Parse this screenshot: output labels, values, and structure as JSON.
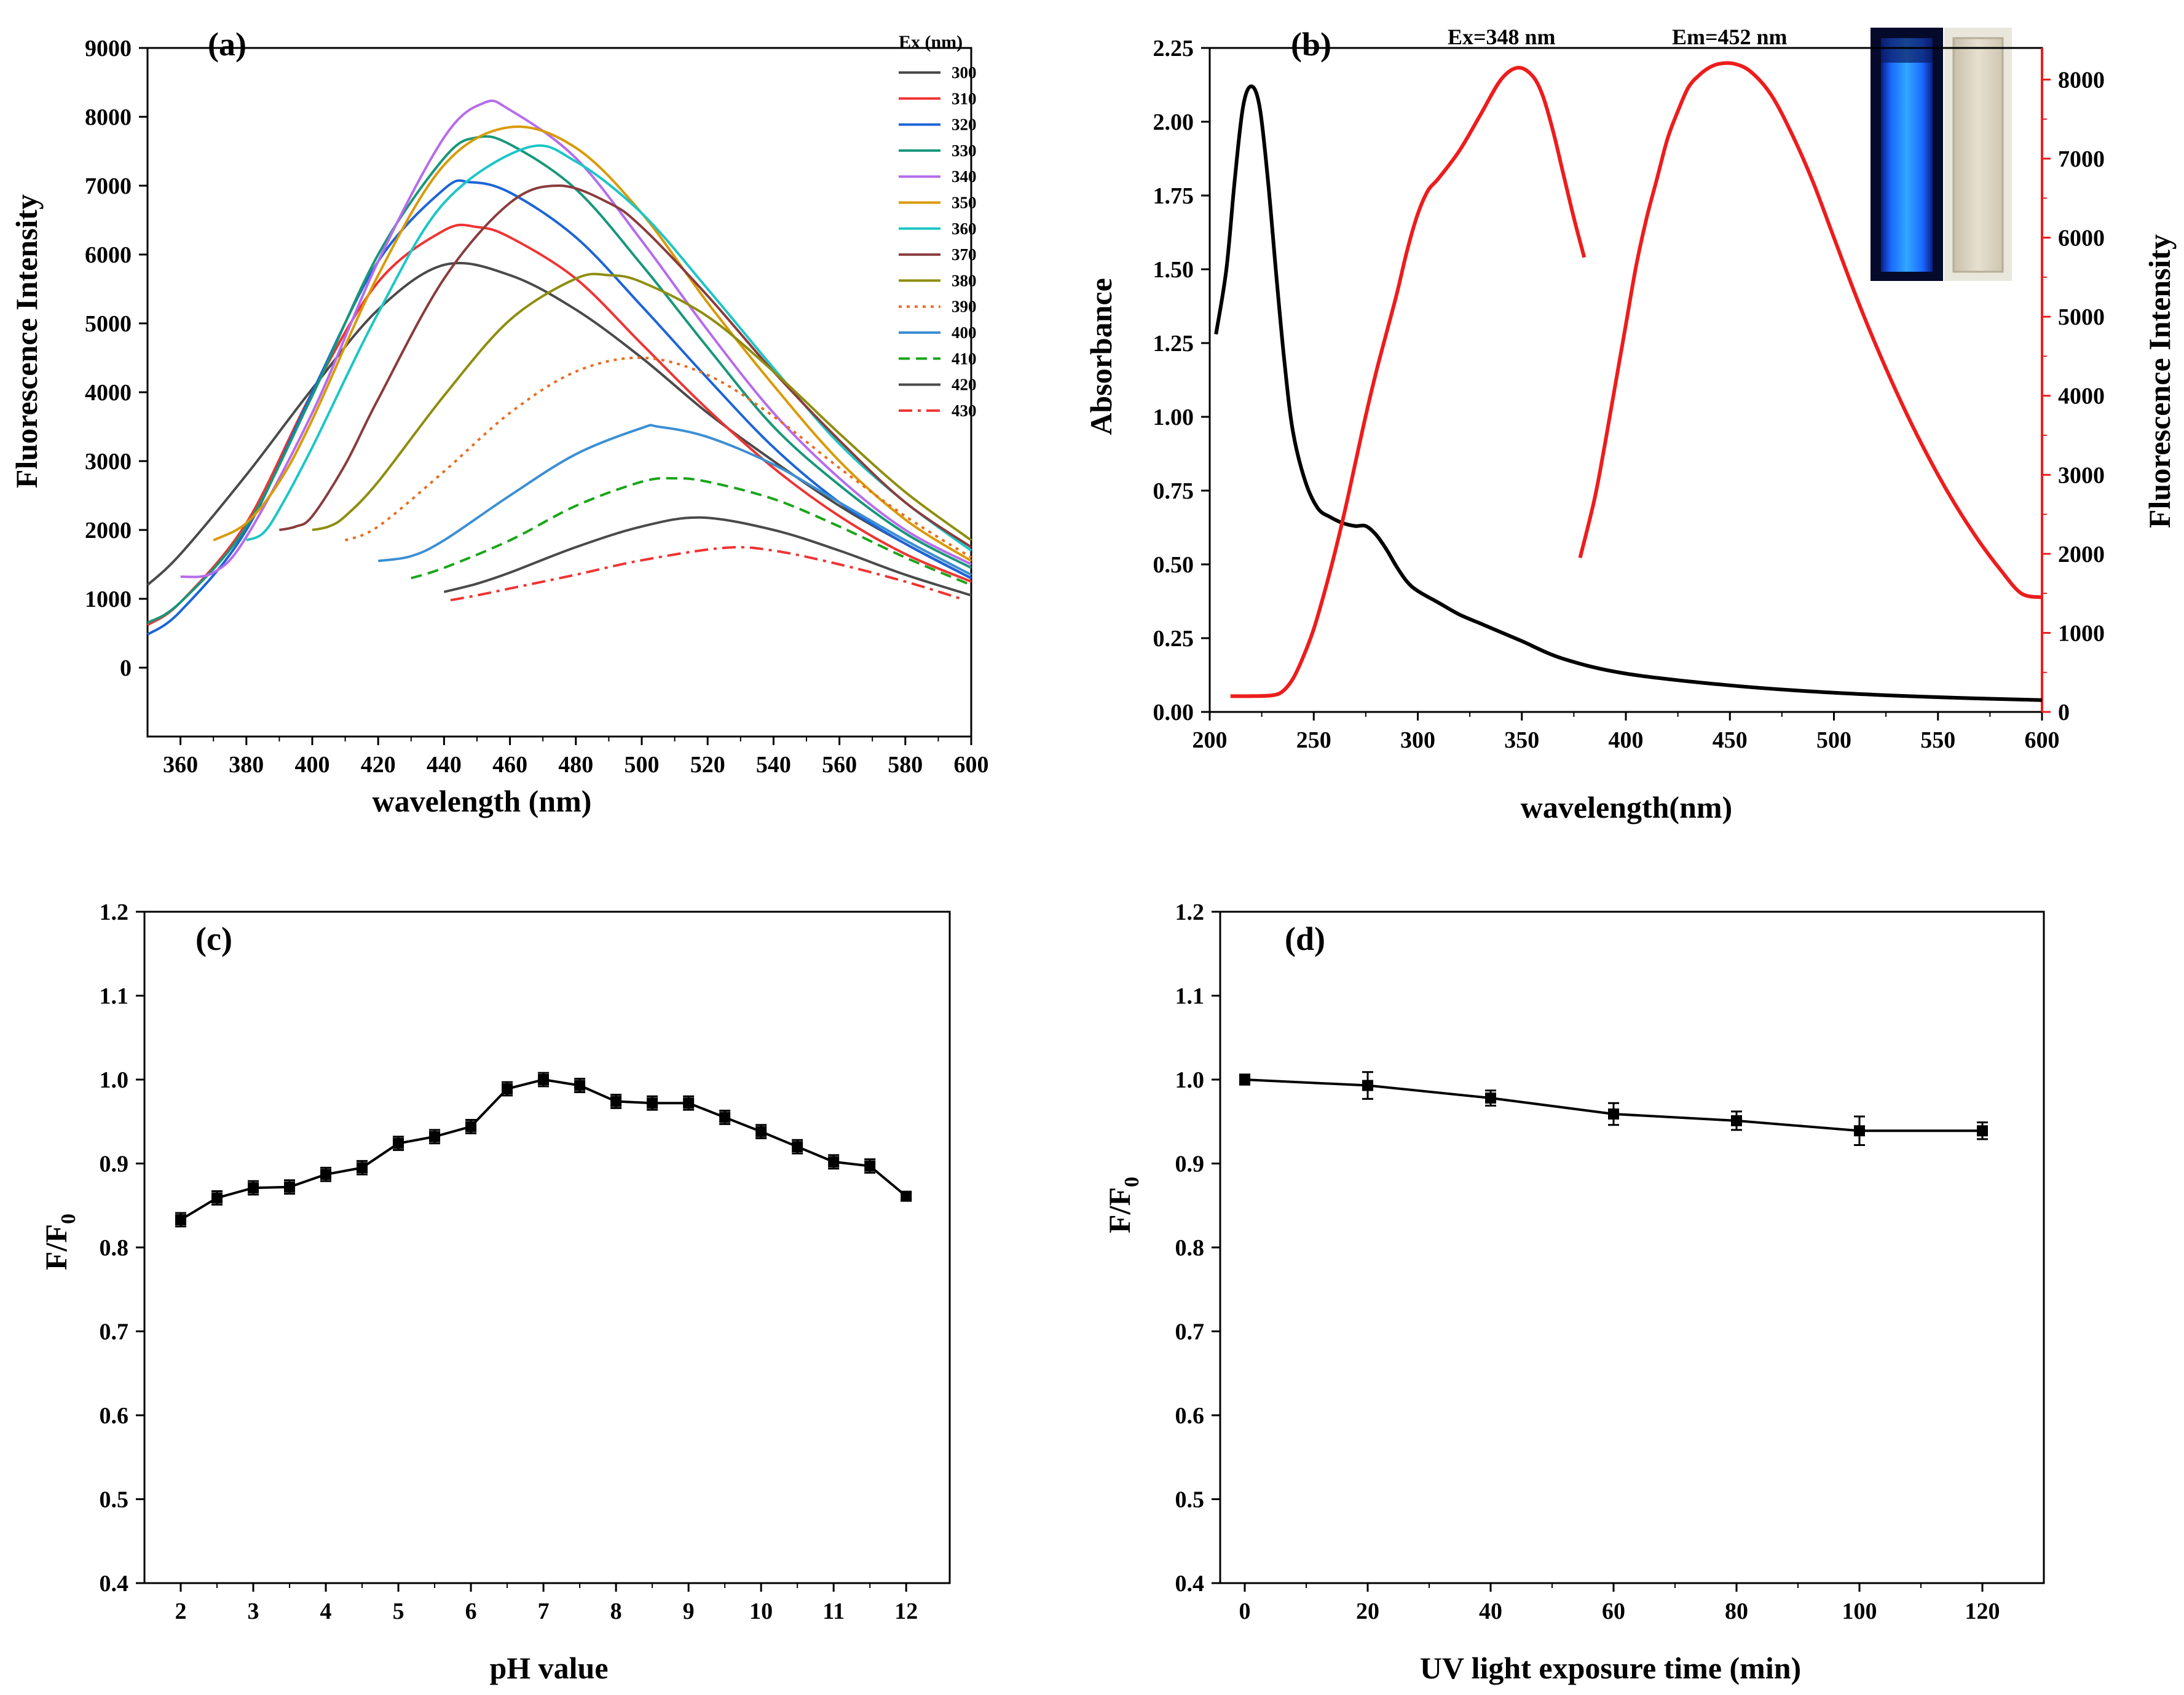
{
  "figure": "Four-panel fluorescence characterization figure",
  "chart_data": [
    {
      "id": "a",
      "type": "line",
      "panel_label": "(a)",
      "xlabel": "wavelength (nm)",
      "ylabel": "Fluorescence Intensity",
      "xlim": [
        350,
        600
      ],
      "ylim": [
        -1000,
        9000
      ],
      "xticks": [
        360,
        380,
        400,
        420,
        440,
        460,
        480,
        500,
        520,
        540,
        560,
        580,
        600
      ],
      "yticks": [
        0,
        1000,
        2000,
        3000,
        4000,
        5000,
        6000,
        7000,
        8000,
        9000
      ],
      "legend_title": "Ex (nm)",
      "legend_position": "top-right",
      "series": [
        {
          "name": "300",
          "color": "#4a4a4a",
          "dash": "solid",
          "x": [
            350,
            360,
            380,
            400,
            420,
            440,
            460,
            480,
            500,
            520,
            540,
            560,
            580,
            600
          ],
          "y": [
            1200,
            1650,
            2800,
            4050,
            5200,
            5850,
            5700,
            5200,
            4500,
            3700,
            3000,
            2350,
            1800,
            1300
          ]
        },
        {
          "name": "310",
          "color": "#ef3333",
          "dash": "solid",
          "x": [
            350,
            360,
            380,
            400,
            420,
            440,
            450,
            460,
            480,
            500,
            520,
            540,
            560,
            580,
            600
          ],
          "y": [
            620,
            950,
            2100,
            4000,
            5600,
            6350,
            6400,
            6250,
            5650,
            4700,
            3750,
            2900,
            2200,
            1650,
            1250
          ]
        },
        {
          "name": "320",
          "color": "#1c64d6",
          "dash": "solid",
          "x": [
            350,
            360,
            380,
            400,
            420,
            440,
            448,
            460,
            480,
            500,
            520,
            540,
            560,
            580,
            600
          ],
          "y": [
            480,
            820,
            2000,
            4000,
            5900,
            6950,
            7050,
            6900,
            6250,
            5250,
            4200,
            3200,
            2400,
            1800,
            1300
          ]
        },
        {
          "name": "330",
          "color": "#17977a",
          "dash": "solid",
          "x": [
            350,
            360,
            380,
            400,
            420,
            440,
            450,
            460,
            480,
            500,
            520,
            540,
            560,
            580,
            600
          ],
          "y": [
            650,
            950,
            2050,
            3950,
            6000,
            7400,
            7700,
            7600,
            6950,
            5850,
            4650,
            3500,
            2650,
            1950,
            1450
          ]
        },
        {
          "name": "340",
          "color": "#b66cec",
          "dash": "solid",
          "x": [
            360,
            370,
            380,
            400,
            420,
            440,
            452,
            460,
            480,
            500,
            520,
            540,
            560,
            580,
            600
          ],
          "y": [
            1320,
            1380,
            1900,
            3700,
            5900,
            7700,
            8200,
            8100,
            7400,
            6200,
            4900,
            3700,
            2750,
            2000,
            1500
          ]
        },
        {
          "name": "350",
          "color": "#d99a06",
          "dash": "solid",
          "x": [
            370,
            380,
            390,
            400,
            420,
            440,
            460,
            480,
            500,
            520,
            540,
            560,
            580,
            600
          ],
          "y": [
            1850,
            2100,
            2700,
            3600,
            5700,
            7300,
            7850,
            7550,
            6600,
            5300,
            4100,
            3000,
            2150,
            1550
          ]
        },
        {
          "name": "360",
          "color": "#1cc6c6",
          "dash": "solid",
          "x": [
            380,
            385,
            390,
            400,
            420,
            440,
            465,
            480,
            500,
            520,
            540,
            560,
            580,
            600
          ],
          "y": [
            1850,
            1950,
            2300,
            3200,
            5150,
            6750,
            7550,
            7350,
            6600,
            5500,
            4350,
            3250,
            2400,
            1700
          ]
        },
        {
          "name": "370",
          "color": "#8a3c3c",
          "dash": "solid",
          "x": [
            390,
            395,
            400,
            410,
            420,
            440,
            460,
            475,
            490,
            500,
            520,
            540,
            560,
            580,
            600
          ],
          "y": [
            2000,
            2050,
            2200,
            2950,
            3900,
            5650,
            6750,
            7000,
            6750,
            6400,
            5400,
            4300,
            3300,
            2400,
            1750
          ]
        },
        {
          "name": "380",
          "color": "#8e8e10",
          "dash": "solid",
          "x": [
            400,
            405,
            410,
            420,
            440,
            460,
            480,
            490,
            500,
            520,
            540,
            560,
            580,
            600
          ],
          "y": [
            2000,
            2050,
            2200,
            2700,
            3950,
            5050,
            5650,
            5700,
            5600,
            5100,
            4300,
            3400,
            2550,
            1850
          ]
        },
        {
          "name": "390",
          "color": "#e86d1f",
          "dash": "dotted",
          "x": [
            410,
            420,
            440,
            460,
            480,
            500,
            520,
            540,
            560,
            580,
            600
          ],
          "y": [
            1850,
            2050,
            2850,
            3700,
            4300,
            4500,
            4250,
            3650,
            2900,
            2200,
            1600
          ]
        },
        {
          "name": "400",
          "color": "#3b8fd4",
          "dash": "solid",
          "x": [
            420,
            430,
            440,
            460,
            480,
            500,
            505,
            520,
            540,
            560,
            580,
            600
          ],
          "y": [
            1550,
            1620,
            1850,
            2500,
            3100,
            3480,
            3500,
            3350,
            2950,
            2400,
            1850,
            1350
          ]
        },
        {
          "name": "410",
          "color": "#1aa51a",
          "dash": "dashed",
          "x": [
            430,
            440,
            460,
            480,
            500,
            510,
            520,
            540,
            560,
            580,
            600
          ],
          "y": [
            1300,
            1450,
            1850,
            2350,
            2700,
            2750,
            2700,
            2450,
            2050,
            1600,
            1200
          ]
        },
        {
          "name": "420",
          "color": "#4a4a4a",
          "dash": "solid",
          "x": [
            440,
            450,
            460,
            480,
            500,
            518,
            540,
            560,
            580,
            600
          ],
          "y": [
            1100,
            1220,
            1380,
            1750,
            2050,
            2180,
            2000,
            1700,
            1350,
            1050
          ]
        },
        {
          "name": "430",
          "color": "#ef3333",
          "dash": "dashdot",
          "x": [
            442,
            450,
            460,
            480,
            500,
            525,
            540,
            560,
            580,
            597
          ],
          "y": [
            980,
            1050,
            1150,
            1350,
            1560,
            1740,
            1700,
            1500,
            1250,
            1000
          ]
        }
      ]
    },
    {
      "id": "b",
      "type": "line",
      "panel_label": "(b)",
      "xlabel": "wavelength(nm)",
      "ylabel": "Absorbance",
      "ylabel_right": "Fluorescence Intensity",
      "xlim": [
        200,
        600
      ],
      "ylim": [
        0,
        2.25
      ],
      "ylim_right": [
        0,
        8400
      ],
      "xticks": [
        200,
        250,
        300,
        350,
        400,
        450,
        500,
        550,
        600
      ],
      "yticks": [
        "0.00",
        "0.25",
        "0.50",
        "0.75",
        "1.00",
        "1.25",
        "1.50",
        "1.75",
        "2.00",
        "2.25"
      ],
      "yticks_right": [
        0,
        1000,
        2000,
        3000,
        4000,
        5000,
        6000,
        7000,
        8000
      ],
      "annotations": [
        "Ex=348 nm",
        "Em=452 nm"
      ],
      "inset": "photo of two cuvettes: blue fluorescence under UV light and clear solution under daylight",
      "series": [
        {
          "name": "absorbance",
          "axis": "left",
          "color": "#000000",
          "x": [
            203,
            208,
            212,
            216,
            220,
            224,
            228,
            232,
            236,
            240,
            246,
            252,
            258,
            264,
            270,
            275,
            280,
            285,
            290,
            295,
            300,
            310,
            320,
            330,
            340,
            350,
            370,
            400,
            450,
            500,
            550,
            600
          ],
          "y": [
            1.28,
            1.5,
            1.8,
            2.05,
            2.12,
            2.05,
            1.8,
            1.48,
            1.18,
            0.95,
            0.78,
            0.69,
            0.66,
            0.64,
            0.63,
            0.63,
            0.6,
            0.55,
            0.49,
            0.44,
            0.41,
            0.37,
            0.33,
            0.3,
            0.27,
            0.24,
            0.18,
            0.13,
            0.09,
            0.065,
            0.05,
            0.04
          ]
        },
        {
          "name": "excitation",
          "axis": "right",
          "color": "#ee1c1c",
          "x": [
            210,
            220,
            230,
            235,
            240,
            245,
            250,
            255,
            260,
            265,
            270,
            275,
            280,
            285,
            290,
            295,
            300,
            305,
            310,
            320,
            330,
            340,
            348,
            355,
            360,
            365,
            370,
            375,
            380
          ],
          "y": [
            200,
            200,
            210,
            260,
            420,
            700,
            1050,
            1500,
            2000,
            2550,
            3150,
            3750,
            4300,
            4800,
            5300,
            5850,
            6300,
            6600,
            6750,
            7100,
            7550,
            8000,
            8150,
            8050,
            7800,
            7350,
            6800,
            6250,
            5750
          ]
        },
        {
          "name": "emission",
          "axis": "right",
          "color": "#ee1c1c",
          "x": [
            378,
            385,
            390,
            395,
            400,
            405,
            410,
            415,
            420,
            425,
            430,
            435,
            440,
            445,
            452,
            460,
            470,
            480,
            490,
            500,
            510,
            520,
            530,
            540,
            550,
            560,
            570,
            580,
            590,
            600
          ],
          "y": [
            1950,
            2700,
            3400,
            4150,
            4900,
            5650,
            6250,
            6750,
            7250,
            7600,
            7900,
            8050,
            8150,
            8200,
            8200,
            8100,
            7800,
            7300,
            6700,
            6000,
            5300,
            4650,
            4050,
            3500,
            3000,
            2550,
            2150,
            1800,
            1500,
            1450
          ]
        }
      ]
    },
    {
      "id": "c",
      "type": "line",
      "panel_label": "(c)",
      "xlabel": "pH value",
      "ylabel": "F/F0",
      "xlim": [
        1.5,
        12.6
      ],
      "ylim": [
        0.4,
        1.2
      ],
      "xticks": [
        2,
        3,
        4,
        5,
        6,
        7,
        8,
        9,
        10,
        11,
        12
      ],
      "yticks": [
        "0.4",
        "0.5",
        "0.6",
        "0.7",
        "0.8",
        "0.9",
        "1.0",
        "1.1",
        "1.2"
      ],
      "series": [
        {
          "name": "F/F0",
          "color": "#000000",
          "marker": "square",
          "x": [
            2,
            2.5,
            3,
            3.5,
            4,
            4.5,
            5,
            5.5,
            6,
            6.5,
            7,
            7.5,
            8,
            8.5,
            9,
            9.5,
            10,
            10.5,
            11,
            11.5,
            12
          ],
          "y": [
            0.833,
            0.859,
            0.871,
            0.872,
            0.887,
            0.895,
            0.924,
            0.932,
            0.944,
            0.989,
            1.0,
            0.993,
            0.974,
            0.972,
            0.972,
            0.955,
            0.938,
            0.92,
            0.902,
            0.897,
            0.861
          ],
          "err": [
            0.008,
            0.008,
            0.008,
            0.008,
            0.008,
            0.008,
            0.008,
            0.008,
            0.008,
            0.008,
            0.008,
            0.008,
            0.008,
            0.008,
            0.008,
            0.008,
            0.008,
            0.008,
            0.008,
            0.008,
            0.004
          ]
        }
      ]
    },
    {
      "id": "d",
      "type": "line",
      "panel_label": "(d)",
      "xlabel": "UV light exposure time (min)",
      "ylabel": "F/F0",
      "xlim": [
        -4,
        130
      ],
      "ylim": [
        0.4,
        1.2
      ],
      "xticks": [
        0,
        20,
        40,
        60,
        80,
        100,
        120
      ],
      "yticks": [
        "0.4",
        "0.5",
        "0.6",
        "0.7",
        "0.8",
        "0.9",
        "1.0",
        "1.1",
        "1.2"
      ],
      "series": [
        {
          "name": "F/F0",
          "color": "#000000",
          "marker": "square",
          "x": [
            0,
            20,
            40,
            60,
            80,
            100,
            120
          ],
          "y": [
            1.0,
            0.993,
            0.978,
            0.959,
            0.951,
            0.939,
            0.939
          ],
          "err": [
            0.006,
            0.016,
            0.009,
            0.013,
            0.011,
            0.017,
            0.01
          ]
        }
      ]
    }
  ]
}
